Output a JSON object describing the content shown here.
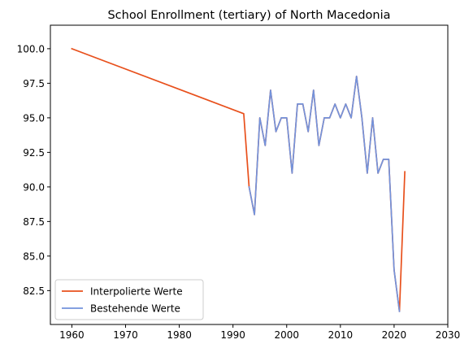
{
  "chart_data": {
    "type": "line",
    "title": "School Enrollment (tertiary) of North Macedonia",
    "xlabel": "",
    "ylabel": "",
    "xlim": [
      1956,
      2030
    ],
    "ylim": [
      80.05,
      101.7
    ],
    "xticks": [
      1960,
      1970,
      1980,
      1990,
      2000,
      2010,
      2020,
      2030
    ],
    "yticks": [
      82.5,
      85.0,
      87.5,
      90.0,
      92.5,
      95.0,
      97.5,
      100.0
    ],
    "grid": false,
    "legend": "lower-left",
    "series": [
      {
        "name": "Interpolierte Werte",
        "color": "#e8501c",
        "x": [
          1960,
          1992,
          1993,
          1994,
          1995,
          1996,
          1997,
          1998,
          1999,
          2000,
          2001,
          2002,
          2003,
          2004,
          2005,
          2006,
          2007,
          2008,
          2009,
          2010,
          2011,
          2012,
          2013,
          2014,
          2015,
          2016,
          2017,
          2018,
          2019,
          2020,
          2021,
          2022
        ],
        "y": [
          100.0,
          95.3,
          90.0,
          88.0,
          95.0,
          93.0,
          97.0,
          94.0,
          95.0,
          95.0,
          91.0,
          96.0,
          96.0,
          94.0,
          97.0,
          93.0,
          95.0,
          95.0,
          96.0,
          95.0,
          96.0,
          95.0,
          98.0,
          95.0,
          91.0,
          95.0,
          91.0,
          92.0,
          92.0,
          84.0,
          81.0,
          91.1
        ]
      },
      {
        "name": "Bestehende Werte",
        "color": "#7393dc",
        "x": [
          1993,
          1994,
          1995,
          1996,
          1997,
          1998,
          1999,
          2000,
          2001,
          2002,
          2003,
          2004,
          2005,
          2006,
          2007,
          2008,
          2009,
          2010,
          2011,
          2012,
          2013,
          2014,
          2015,
          2016,
          2017,
          2018,
          2019,
          2020,
          2021
        ],
        "y": [
          90.0,
          88.0,
          95.0,
          93.0,
          97.0,
          94.0,
          95.0,
          95.0,
          91.0,
          96.0,
          96.0,
          94.0,
          97.0,
          93.0,
          95.0,
          95.0,
          96.0,
          95.0,
          96.0,
          95.0,
          98.0,
          95.0,
          91.0,
          95.0,
          91.0,
          92.0,
          92.0,
          84.0,
          81.0
        ]
      }
    ]
  }
}
